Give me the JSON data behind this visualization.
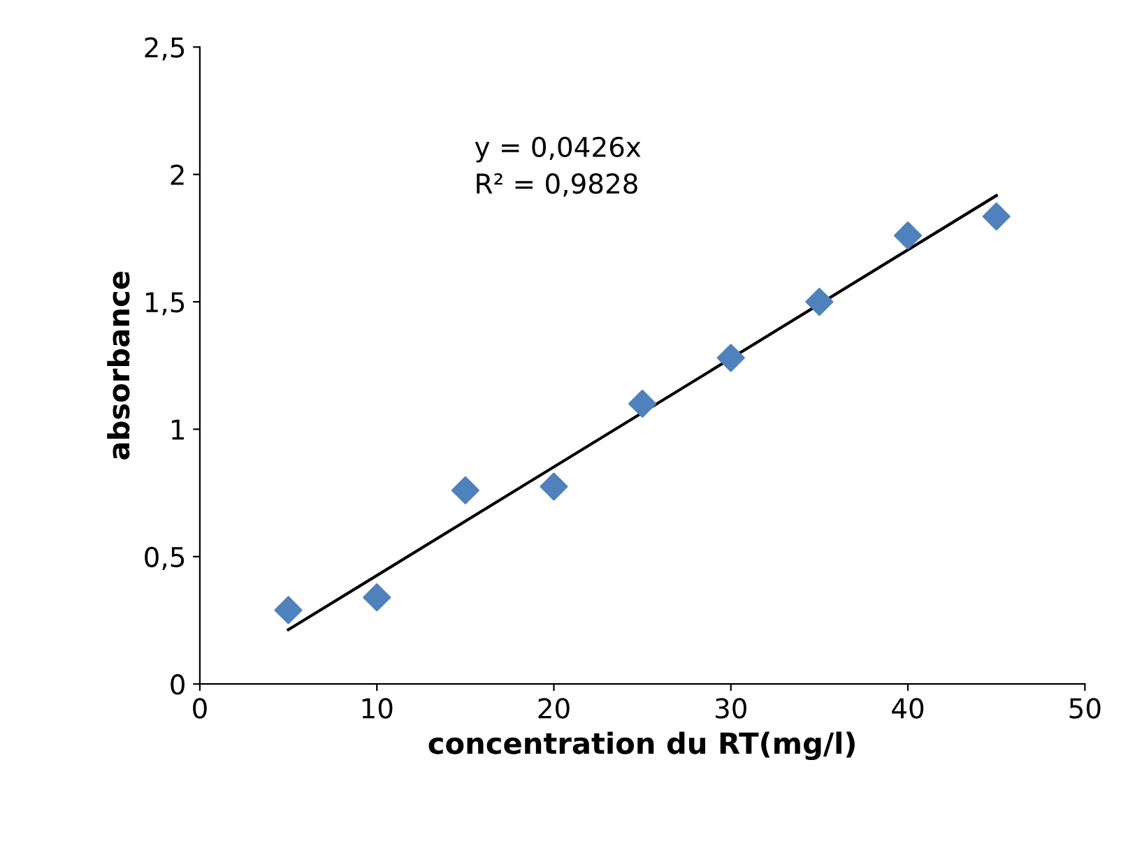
{
  "chart_data": {
    "type": "scatter",
    "xlabel": "concentration du RT(mg/l)",
    "ylabel": "absorbance",
    "annotations": [
      "y = 0,0426x\nR² = 0,9828"
    ],
    "x": [
      5,
      10,
      15,
      20,
      25,
      30,
      35,
      40,
      45
    ],
    "series": [
      {
        "color": "#4f81bd",
        "marker": "diamond",
        "values": [
          0.29,
          0.34,
          0.76,
          0.775,
          1.1,
          1.28,
          1.5,
          1.76,
          1.835
        ]
      },
      {
        "type": "line",
        "color": "#000000",
        "marker": "none",
        "line_style": "solid",
        "x": [
          5,
          45
        ],
        "values": [
          0.213,
          1.917
        ]
      }
    ],
    "xlim": [
      0,
      50
    ],
    "xticks": [
      0,
      10,
      20,
      30,
      40,
      50
    ],
    "ylim": [
      0,
      2.5
    ],
    "yticks": [
      0,
      {
        "value": 0.5,
        "label": "0,5"
      },
      1,
      {
        "value": 1.5,
        "label": "1,5"
      },
      2,
      {
        "value": 2.5,
        "label": "2,5"
      }
    ],
    "grid": false,
    "legend": false
  }
}
